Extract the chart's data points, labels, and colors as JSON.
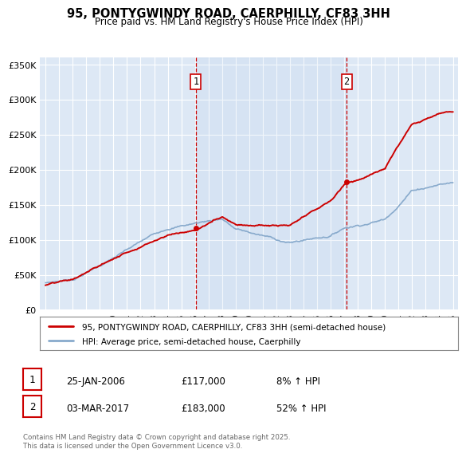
{
  "title": "95, PONTYGWINDY ROAD, CAERPHILLY, CF83 3HH",
  "subtitle": "Price paid vs. HM Land Registry's House Price Index (HPI)",
  "fig_bg_color": "#ffffff",
  "plot_bg_color": "#dde8f5",
  "red_line_color": "#cc0000",
  "blue_line_color": "#88aacc",
  "grid_color": "#ffffff",
  "ylim": [
    0,
    360000
  ],
  "yticks": [
    0,
    50000,
    100000,
    150000,
    200000,
    250000,
    300000,
    350000
  ],
  "ytick_labels": [
    "£0",
    "£50K",
    "£100K",
    "£150K",
    "£200K",
    "£250K",
    "£300K",
    "£350K"
  ],
  "xlim_start": 1994.6,
  "xlim_end": 2025.4,
  "xticks": [
    1995,
    1996,
    1997,
    1998,
    1999,
    2000,
    2001,
    2002,
    2003,
    2004,
    2005,
    2006,
    2007,
    2008,
    2009,
    2010,
    2011,
    2012,
    2013,
    2014,
    2015,
    2016,
    2017,
    2018,
    2019,
    2020,
    2021,
    2022,
    2023,
    2024,
    2025
  ],
  "sale1_x": 2006.07,
  "sale1_y": 117000,
  "sale1_label": "1",
  "sale1_date": "25-JAN-2006",
  "sale1_price": "£117,000",
  "sale1_hpi": "8% ↑ HPI",
  "sale2_x": 2017.17,
  "sale2_y": 183000,
  "sale2_label": "2",
  "sale2_date": "03-MAR-2017",
  "sale2_price": "£183,000",
  "sale2_hpi": "52% ↑ HPI",
  "legend_red": "95, PONTYGWINDY ROAD, CAERPHILLY, CF83 3HH (semi-detached house)",
  "legend_blue": "HPI: Average price, semi-detached house, Caerphilly",
  "footnote": "Contains HM Land Registry data © Crown copyright and database right 2025.\nThis data is licensed under the Open Government Licence v3.0.",
  "vline_color": "#cc0000",
  "sale_box_border": "#cc0000"
}
